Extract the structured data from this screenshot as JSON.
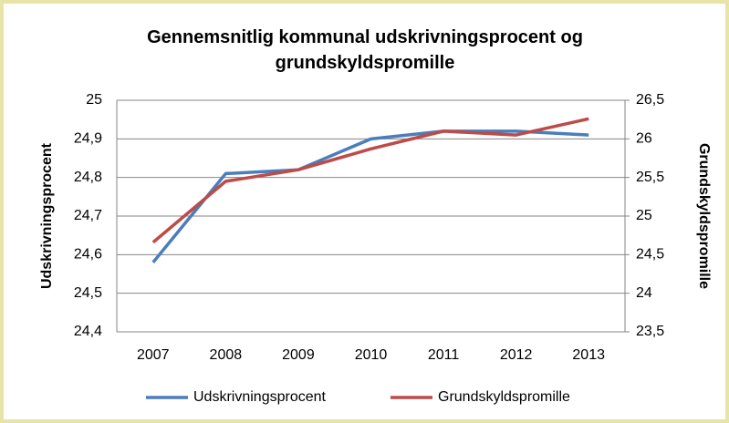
{
  "chart_data": {
    "type": "line",
    "title": "Gennemsnitlig kommunal udskrivningsprocent og grundskyldspromille",
    "y_label": "Udskrivningsprocent",
    "y2_label": "Grundskyldspromille",
    "categories": [
      "2007",
      "2008",
      "2009",
      "2010",
      "2011",
      "2012",
      "2013"
    ],
    "series": [
      {
        "name": "Udskrivningsprocent",
        "color": "#4a7ebb",
        "values": [
          24.58,
          24.81,
          24.82,
          24.9,
          24.92,
          24.92,
          24.91
        ]
      },
      {
        "name": "Grundskyldspromille",
        "color": "#be4b48",
        "axis": "y2",
        "values": [
          24.66,
          25.45,
          25.6,
          25.87,
          26.1,
          26.05,
          26.26
        ]
      }
    ],
    "ylim": [
      24.4,
      25
    ],
    "yticks": [
      {
        "value": 24.4,
        "label": "24,4"
      },
      {
        "value": 24.5,
        "label": "24,5"
      },
      {
        "value": 24.6,
        "label": "24,6"
      },
      {
        "value": 24.7,
        "label": "24,7"
      },
      {
        "value": 24.8,
        "label": "24,8"
      },
      {
        "value": 24.9,
        "label": "24,9"
      },
      25
    ],
    "y2lim": [
      23.5,
      26.5
    ],
    "y2ticks": [
      {
        "value": 23.5,
        "label": "23,5"
      },
      24,
      {
        "value": 24.5,
        "label": "24,5"
      },
      25,
      {
        "value": 25.5,
        "label": "25,5"
      },
      26,
      {
        "value": 26.5,
        "label": "26,5"
      }
    ],
    "grid": true,
    "legend": "bottom"
  }
}
